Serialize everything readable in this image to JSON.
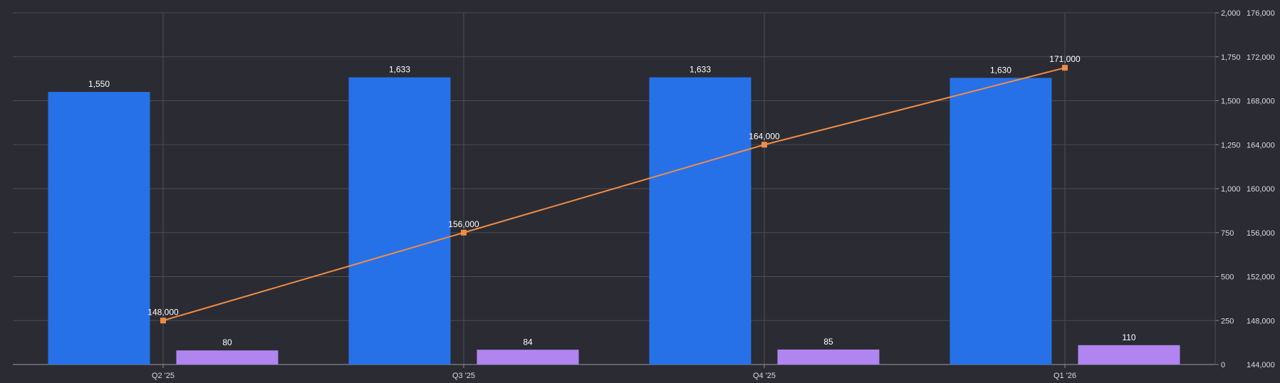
{
  "chart_data": {
    "type": "bar",
    "categories": [
      "Q2 '25",
      "Q3 '25",
      "Q4 '25",
      "Q1 '26"
    ],
    "series": [
      {
        "type": "bar",
        "axis": "left",
        "color": "#2671e8",
        "values": [
          1550,
          1633,
          1633,
          1630
        ],
        "labels": [
          "1,550",
          "1,633",
          "1,633",
          "1,630"
        ]
      },
      {
        "type": "bar",
        "axis": "left",
        "color": "#b085f0",
        "values": [
          80,
          84,
          85,
          110
        ],
        "labels": [
          "80",
          "84",
          "85",
          "110"
        ]
      },
      {
        "type": "line",
        "axis": "right",
        "color": "#f08c45",
        "values": [
          148000,
          156000,
          164000,
          171000
        ],
        "labels": [
          "148,000",
          "156,000",
          "164,000",
          "171,000"
        ]
      }
    ],
    "y_left": {
      "min": 0,
      "max": 2000,
      "ticks": [
        "0",
        "250",
        "500",
        "750",
        "1,000",
        "1,250",
        "1,500",
        "1,750",
        "2,000"
      ]
    },
    "y_right": {
      "min": 144000,
      "max": 176000,
      "ticks": [
        "144,000",
        "148,000",
        "152,000",
        "156,000",
        "160,000",
        "164,000",
        "168,000",
        "172,000",
        "176,000"
      ]
    },
    "grid": true,
    "legend": "none"
  }
}
